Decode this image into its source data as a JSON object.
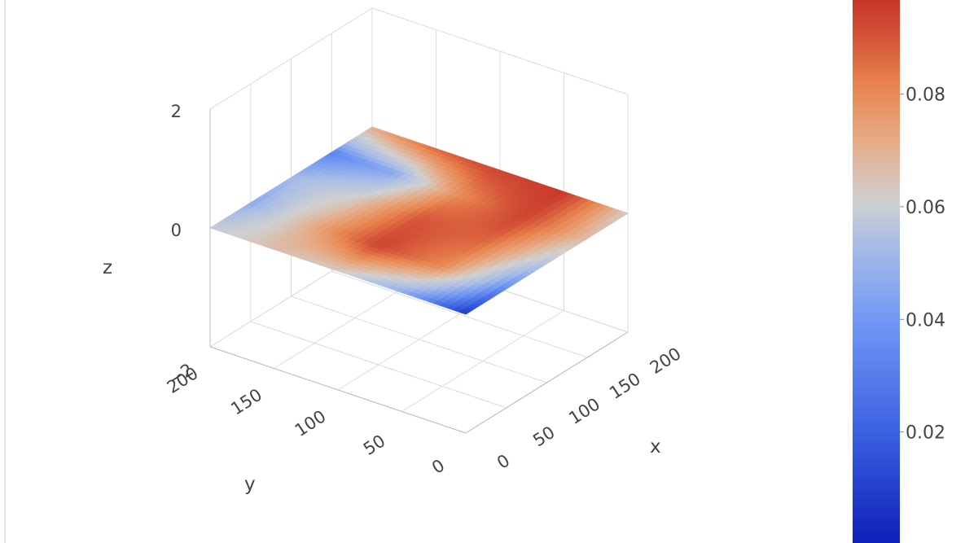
{
  "chart_data": {
    "type": "surface",
    "title": "",
    "colorscale": "coolwarm",
    "colorscale_stops": [
      "#0d1fb8",
      "#3a5fe0",
      "#6e95f4",
      "#a8bde6",
      "#d0d0d0",
      "#e6ab86",
      "#e8854f",
      "#d45338",
      "#c63428"
    ],
    "axes": {
      "x": {
        "label": "x",
        "range": [
          0,
          200
        ],
        "ticks": [
          "0",
          "50",
          "100",
          "150",
          "200"
        ]
      },
      "y": {
        "label": "y",
        "range": [
          0,
          200
        ],
        "ticks": [
          "0",
          "50",
          "100",
          "150",
          "200"
        ]
      },
      "z": {
        "label": "z",
        "range": [
          -2,
          2
        ],
        "ticks": [
          "−2",
          "0",
          "2"
        ]
      }
    },
    "surface": {
      "grid_x": [
        0,
        50,
        100,
        150,
        200
      ],
      "grid_y": [
        0,
        50,
        100,
        150,
        200
      ],
      "z_value_approx": 0,
      "color_values": [
        [
          0.005,
          0.03,
          0.05,
          0.055,
          0.045
        ],
        [
          0.02,
          0.07,
          0.09,
          0.06,
          0.03
        ],
        [
          0.04,
          0.08,
          0.085,
          0.05,
          0.035
        ],
        [
          0.055,
          0.09,
          0.07,
          0.03,
          0.02
        ],
        [
          0.05,
          0.095,
          0.09,
          0.08,
          0.06
        ]
      ]
    },
    "colorbar": {
      "range": [
        0,
        0.097
      ],
      "ticks": [
        "0.02",
        "0.04",
        "0.06",
        "0.08"
      ],
      "tick_values": [
        0.02,
        0.04,
        0.06,
        0.08
      ]
    },
    "grid": true,
    "legend": "none"
  }
}
